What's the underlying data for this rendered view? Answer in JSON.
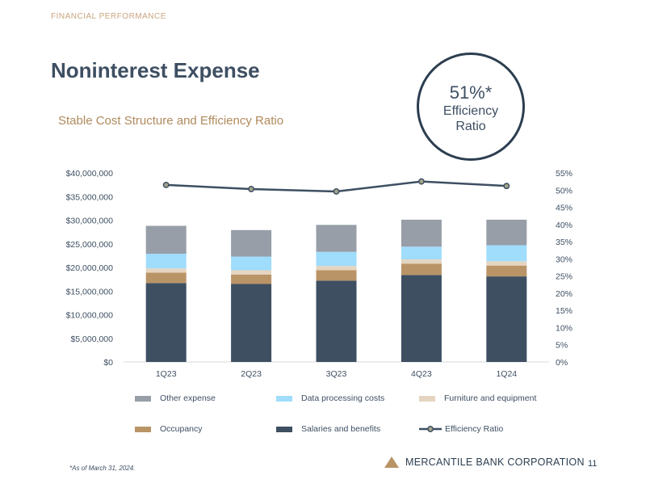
{
  "header": {
    "section": "FINANCIAL PERFORMANCE",
    "title": "Noninterest Expense",
    "subtitle": "Stable Cost Structure and Efficiency Ratio"
  },
  "badge": {
    "value": "51%*",
    "line1": "Efficiency",
    "line2": "Ratio"
  },
  "chart_data": {
    "type": "bar",
    "stacked": true,
    "categories": [
      "1Q23",
      "2Q23",
      "3Q23",
      "4Q23",
      "1Q24"
    ],
    "series": [
      {
        "name": "Salaries and benefits",
        "color": "#3e4f62",
        "values": [
          16700000,
          16500000,
          17200000,
          18400000,
          18100000
        ]
      },
      {
        "name": "Occupancy",
        "color": "#b99467",
        "values": [
          2200000,
          2000000,
          2200000,
          2400000,
          2300000
        ]
      },
      {
        "name": "Furniture and equipment",
        "color": "#e5d5c0",
        "values": [
          900000,
          900000,
          900000,
          900000,
          900000
        ]
      },
      {
        "name": "Data processing costs",
        "color": "#a0dcfb",
        "values": [
          3100000,
          2900000,
          3000000,
          2700000,
          3400000
        ]
      },
      {
        "name": "Other expense",
        "color": "#979ea7",
        "values": [
          5900000,
          5600000,
          5700000,
          5700000,
          5400000
        ]
      }
    ],
    "line": {
      "name": "Efficiency Ratio",
      "values": [
        51.5,
        50.3,
        49.6,
        52.5,
        51.2
      ],
      "color": "#3e4f62",
      "marker_color": "#a3a38a"
    },
    "y_left": {
      "min": 0,
      "max": 40000000,
      "step": 5000000,
      "tick_labels": [
        "$0",
        "$5,000,000",
        "$10,000,000",
        "$15,000,000",
        "$20,000,000",
        "$25,000,000",
        "$30,000,000",
        "$35,000,000",
        "$40,000,000"
      ]
    },
    "y_right": {
      "min": 0,
      "max": 55,
      "step": 5,
      "tick_labels": [
        "0%",
        "5%",
        "10%",
        "15%",
        "20%",
        "25%",
        "30%",
        "35%",
        "40%",
        "45%",
        "50%",
        "55%"
      ]
    },
    "legend": [
      {
        "label": "Other expense",
        "color": "#979ea7",
        "kind": "bar"
      },
      {
        "label": "Data processing costs",
        "color": "#a0dcfb",
        "kind": "bar"
      },
      {
        "label": "Furniture and equipment",
        "color": "#e5d5c0",
        "kind": "bar"
      },
      {
        "label": "Occupancy",
        "color": "#b99467",
        "kind": "bar"
      },
      {
        "label": "Salaries and benefits",
        "color": "#3e4f62",
        "kind": "bar"
      },
      {
        "label": "Efficiency Ratio",
        "color": "#3e4f62",
        "kind": "line"
      }
    ]
  },
  "footer": {
    "footnote": "*As of March 31, 2024.",
    "company": "MERCANTILE BANK CORPORATION",
    "page": "11"
  }
}
